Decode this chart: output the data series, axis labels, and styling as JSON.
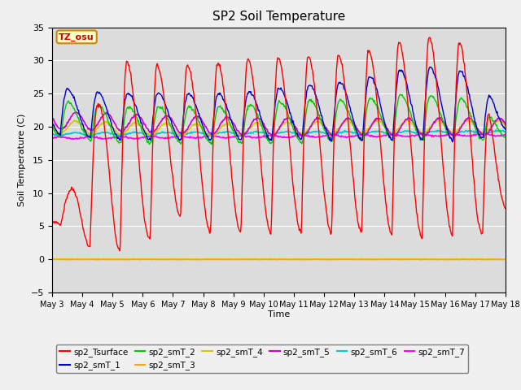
{
  "title": "SP2 Soil Temperature",
  "xlabel": "Time",
  "ylabel": "Soil Temperature (C)",
  "ylim": [
    -5,
    35
  ],
  "bg_color": "#dcdcdc",
  "tz_label": "TZ_osu",
  "series_colors": {
    "sp2_Tsurface": "#ff0000",
    "sp2_smT_1": "#0000cc",
    "sp2_smT_2": "#00cc00",
    "sp2_smT_3": "#ffaa00",
    "sp2_smT_4": "#cccc00",
    "sp2_smT_5": "#cc00cc",
    "sp2_smT_6": "#00cccc",
    "sp2_smT_7": "#ff00ff"
  },
  "x_tick_labels": [
    "May 3",
    "May 4",
    "May 5",
    "May 6",
    "May 7",
    "May 8",
    "May 9",
    "May 10",
    "May 11",
    "May 12",
    "May 13",
    "May 14",
    "May 15",
    "May 16",
    "May 17",
    "May 18"
  ],
  "n_days": 15,
  "pts_per_day": 48
}
